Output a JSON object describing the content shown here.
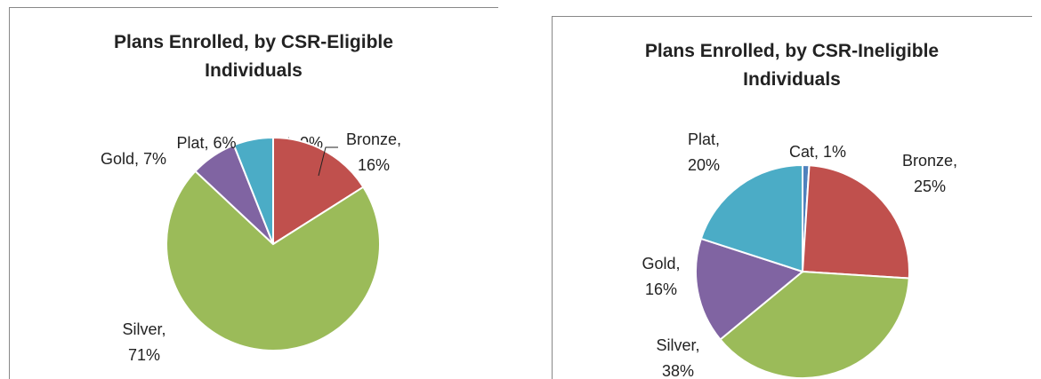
{
  "chart_data": [
    {
      "type": "pie",
      "title": "Plans Enrolled, by CSR-Eligible Individuals",
      "values": [
        0,
        16,
        71,
        7,
        6
      ],
      "value_labels": [
        "Cat, 0%",
        "Bronze, 16%",
        "Silver, 71%",
        "Gold, 7%",
        "Plat, 6%"
      ],
      "colors": [
        "#4f81bd",
        "#c0504d",
        "#9bbb59",
        "#8064a2",
        "#4bacc6"
      ]
    },
    {
      "type": "pie",
      "title": "Plans Enrolled, by CSR-Ineligible Individuals",
      "values": [
        1,
        25,
        38,
        16,
        20
      ],
      "value_labels": [
        "Cat, 1%",
        "Bronze, 25%",
        "Silver, 38%",
        "Gold, 16%",
        "Plat, 20%"
      ],
      "colors": [
        "#4f81bd",
        "#c0504d",
        "#9bbb59",
        "#8064a2",
        "#4bacc6"
      ]
    }
  ]
}
